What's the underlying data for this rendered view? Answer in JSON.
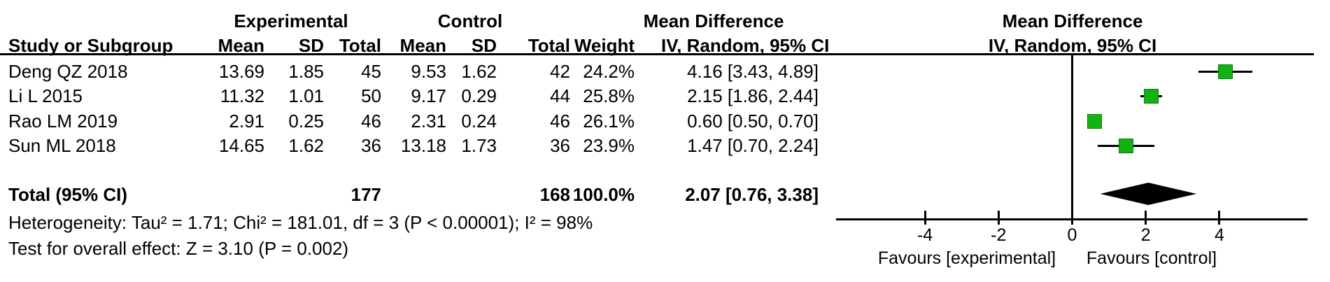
{
  "table": {
    "group_headers": {
      "experimental": "Experimental",
      "control": "Control",
      "mean_difference": "Mean Difference"
    },
    "columns": {
      "study": "Study or Subgroup",
      "mean": "Mean",
      "sd": "SD",
      "total": "Total",
      "mean2": "Mean",
      "sd2": "SD",
      "total2": "Total",
      "weight": "Weight",
      "ci": "IV, Random, 95% CI"
    },
    "rows": [
      {
        "study": "Deng QZ 2018",
        "e_mean": "13.69",
        "e_sd": "1.85",
        "e_total": "45",
        "c_mean": "9.53",
        "c_sd": "1.62",
        "c_total": "42",
        "weight": "24.2%",
        "ci_text": "4.16 [3.43, 4.89]"
      },
      {
        "study": "Li L 2015",
        "e_mean": "11.32",
        "e_sd": "1.01",
        "e_total": "50",
        "c_mean": "9.17",
        "c_sd": "0.29",
        "c_total": "44",
        "weight": "25.8%",
        "ci_text": "2.15 [1.86, 2.44]"
      },
      {
        "study": "Rao LM 2019",
        "e_mean": "2.91",
        "e_sd": "0.25",
        "e_total": "46",
        "c_mean": "2.31",
        "c_sd": "0.24",
        "c_total": "46",
        "weight": "26.1%",
        "ci_text": "0.60 [0.50, 0.70]"
      },
      {
        "study": "Sun ML 2018",
        "e_mean": "14.65",
        "e_sd": "1.62",
        "e_total": "36",
        "c_mean": "13.18",
        "c_sd": "1.73",
        "c_total": "36",
        "weight": "23.9%",
        "ci_text": "1.47 [0.70, 2.24]"
      }
    ],
    "total_row": {
      "label": "Total (95% CI)",
      "e_total": "177",
      "c_total": "168",
      "weight": "100.0%",
      "ci_text": "2.07 [0.76, 3.38]"
    }
  },
  "footer": {
    "heterogeneity": "Heterogeneity: Tau² = 1.71; Chi² = 181.01, df = 3 (P < 0.00001); I² = 98%",
    "overall_effect": "Test for overall effect: Z = 3.10 (P = 0.002)"
  },
  "plot": {
    "header_line1": "Mean Difference",
    "header_line2": "IV, Random, 95% CI",
    "favours_left": "Favours [experimental]",
    "favours_right": "Favours [control]"
  },
  "chart_data": {
    "type": "forest",
    "effect_measure": "Mean Difference, IV, Random, 95% CI",
    "x_axis": {
      "ticks": [
        -4,
        -2,
        0,
        2,
        4
      ],
      "xlim": [
        -6.4,
        6.4
      ]
    },
    "studies": [
      {
        "name": "Deng QZ 2018",
        "md": 4.16,
        "lo": 3.43,
        "hi": 4.89,
        "weight_pct": 24.2
      },
      {
        "name": "Li L 2015",
        "md": 2.15,
        "lo": 1.86,
        "hi": 2.44,
        "weight_pct": 25.8
      },
      {
        "name": "Rao LM 2019",
        "md": 0.6,
        "lo": 0.5,
        "hi": 0.7,
        "weight_pct": 26.1
      },
      {
        "name": "Sun ML 2018",
        "md": 1.47,
        "lo": 0.7,
        "hi": 2.24,
        "weight_pct": 23.9
      }
    ],
    "total": {
      "md": 2.07,
      "lo": 0.76,
      "hi": 3.38,
      "weight_pct": 100.0
    },
    "heterogeneity": {
      "tau2": 1.71,
      "chi2": 181.01,
      "df": 3,
      "p": "< 0.00001",
      "i2_pct": 98
    },
    "overall_effect": {
      "z": 3.1,
      "p": 0.002
    },
    "colors": {
      "marker_fill": "#12b212",
      "marker_border": "#0a7a0a",
      "diamond": "#000000",
      "line": "#000000"
    }
  }
}
